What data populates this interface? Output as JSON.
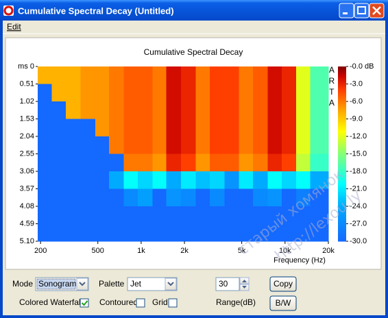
{
  "window": {
    "title": "Cumulative Spectral Decay  (Untitled)",
    "menu": [
      "Edit"
    ]
  },
  "chart_data": {
    "type": "heatmap",
    "title": "Cumulative Spectral Decay",
    "x_label": "Frequency (Hz)",
    "watermark": "ARTA",
    "x_scale": "log",
    "xlim": [
      191,
      20000
    ],
    "xticks": [
      200,
      500,
      {
        "value": 1000,
        "label": "1k"
      },
      {
        "value": 2000,
        "label": "2k"
      },
      {
        "value": 5000,
        "label": "5k"
      },
      {
        "value": 10000,
        "label": "10k"
      },
      {
        "value": 20000,
        "label": "20k"
      }
    ],
    "ylim": [
      0,
      5.1
    ],
    "y_inverted": true,
    "yticks": [
      {
        "value": 0,
        "label": "ms 0"
      },
      0.51,
      1.02,
      1.53,
      2.04,
      2.55,
      3.06,
      3.57,
      4.08,
      4.59,
      {
        "value": 5.1,
        "label": "5.10"
      }
    ],
    "freq_bins": [
      191,
      240,
      300,
      380,
      480,
      600,
      760,
      950,
      1200,
      1500,
      1900,
      2400,
      3000,
      3800,
      4800,
      6000,
      7600,
      9500,
      12000,
      15000,
      20000
    ],
    "time_bins": [
      0,
      0.51,
      1.02,
      1.53,
      2.04,
      2.55,
      3.06,
      3.57,
      4.08,
      4.59,
      5.1
    ],
    "z": [
      [
        -8,
        -8,
        -8,
        -7,
        -7,
        -6,
        -5,
        -5,
        -6,
        -2,
        -3,
        -6,
        -4,
        -4,
        -6,
        -5,
        -2,
        -3,
        -12,
        -17
      ],
      [
        -30,
        -8,
        -8,
        -7,
        -7,
        -6,
        -5,
        -5,
        -6,
        -2,
        -3,
        -6,
        -4,
        -4,
        -6,
        -5,
        -2,
        -3,
        -12,
        -17
      ],
      [
        -30,
        -30,
        -8,
        -7,
        -7,
        -6,
        -5,
        -5,
        -6,
        -2,
        -3,
        -6,
        -4,
        -4,
        -6,
        -5,
        -2,
        -3,
        -12,
        -17
      ],
      [
        -30,
        -30,
        -30,
        -30,
        -7,
        -6,
        -5,
        -5,
        -6,
        -2,
        -3,
        -6,
        -4,
        -4,
        -6,
        -5,
        -2,
        -3,
        -12,
        -17
      ],
      [
        -30,
        -30,
        -30,
        -30,
        -30,
        -6,
        -5,
        -5,
        -6,
        -2,
        -3,
        -6,
        -4,
        -4,
        -6,
        -5,
        -2,
        -3,
        -12,
        -17
      ],
      [
        -30,
        -30,
        -30,
        -30,
        -30,
        -30,
        -6,
        -6,
        -7,
        -3,
        -4,
        -7,
        -5,
        -5,
        -7,
        -6,
        -3,
        -4,
        -13,
        -18
      ],
      [
        -30,
        -30,
        -30,
        -30,
        -30,
        -24,
        -20,
        -22,
        -20,
        -24,
        -21,
        -23,
        -22,
        -26,
        -21,
        -24,
        -20,
        -22,
        -20,
        -24
      ],
      [
        -30,
        -30,
        -30,
        -30,
        -30,
        -30,
        -27,
        -25,
        -30,
        -26,
        -27,
        -30,
        -27,
        -30,
        -30,
        -27,
        -26,
        -30,
        -28,
        -30
      ],
      [
        -30,
        -30,
        -30,
        -30,
        -30,
        -30,
        -30,
        -30,
        -30,
        -30,
        -30,
        -30,
        -30,
        -30,
        -30,
        -30,
        -30,
        -30,
        -30,
        -30
      ],
      [
        -30,
        -30,
        -30,
        -30,
        -30,
        -30,
        -30,
        -30,
        -30,
        -30,
        -30,
        -30,
        -30,
        -30,
        -30,
        -30,
        -30,
        -30,
        -30,
        -30
      ]
    ],
    "zlim": [
      -30,
      0
    ],
    "zticks": [
      {
        "value": 0,
        "label": "-0.0 dB"
      },
      {
        "value": -3,
        "label": "-3.0"
      },
      {
        "value": -6,
        "label": "-6.0"
      },
      {
        "value": -9,
        "label": "-9.0"
      },
      {
        "value": -12,
        "label": "-12.0"
      },
      {
        "value": -15,
        "label": "-15.0"
      },
      {
        "value": -18,
        "label": "-18.0"
      },
      {
        "value": -21,
        "label": "-21.0"
      },
      {
        "value": -24,
        "label": "-24.0"
      },
      {
        "value": -27,
        "label": "-27.0"
      },
      {
        "value": -30,
        "label": "-30.0"
      }
    ],
    "colormap": "jet"
  },
  "controls": {
    "mode_label": "Mode",
    "mode": "Sonogram",
    "palette_label": "Palette",
    "palette": "Jet",
    "range": 30,
    "range_label": "Range(dB)",
    "copy": "Copy",
    "bw": "B/W",
    "colored_waterfall": {
      "label": "Colored Waterfall",
      "checked": true
    },
    "contoured": {
      "label": "Contoured",
      "checked": false
    },
    "grid": {
      "label": "Grid",
      "checked": false
    }
  },
  "overlay": [
    "старый хомянок",
    "http://lexou.ly"
  ]
}
